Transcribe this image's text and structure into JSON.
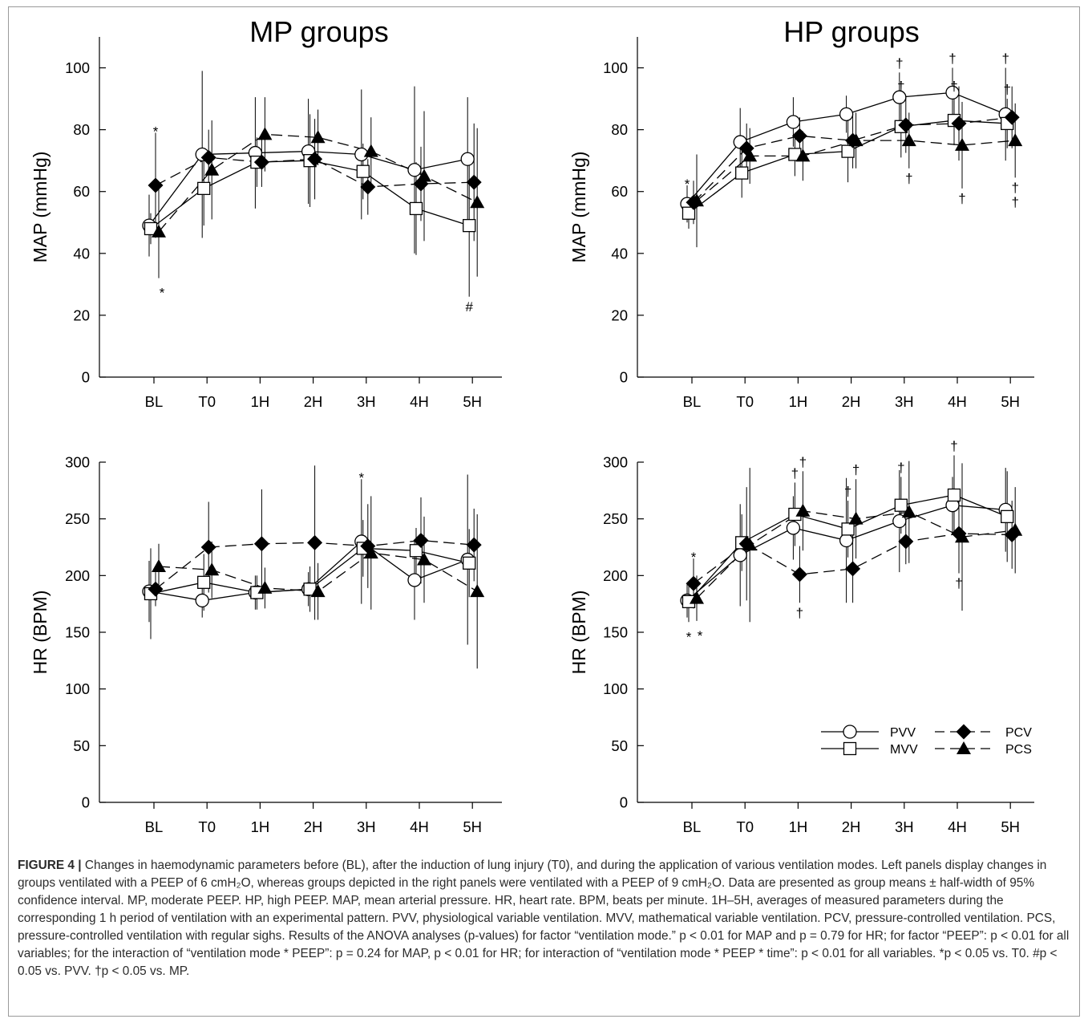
{
  "figure": {
    "colors": {
      "line": "#000000",
      "axis": "#000000",
      "frame": "#9a9a9a",
      "caption": "#2b2b2b"
    },
    "legend": {
      "items": [
        {
          "label": "PVV",
          "marker": "circle-open",
          "dash": "solid"
        },
        {
          "label": "MVV",
          "marker": "square-open",
          "dash": "solid"
        },
        {
          "label": "PCV",
          "marker": "diamond-filled",
          "dash": "dashed"
        },
        {
          "label": "PCS",
          "marker": "triangle-filled",
          "dash": "dashed"
        }
      ]
    },
    "caption": {
      "label": "FIGURE 4 |",
      "text": "Changes in haemodynamic parameters before (BL), after the induction of lung injury (T0), and during the application of various ventilation modes. Left panels display changes in groups ventilated with a PEEP of 6 cmH₂O, whereas groups depicted in the right panels were ventilated with a PEEP of 9 cmH₂O. Data are presented as group means ± half-width of 95% confidence interval. MP, moderate PEEP. HP, high PEEP. MAP, mean arterial pressure. HR, heart rate. BPM, beats per minute. 1H–5H, averages of measured parameters during the corresponding 1 h period of ventilation with an experimental pattern. PVV, physiological variable ventilation. MVV, mathematical variable ventilation. PCV, pressure-controlled ventilation. PCS, pressure-controlled ventilation with regular sighs. Results of the ANOVA analyses (p-values) for factor “ventilation mode.” p < 0.01 for MAP and p = 0.79 for HR; for factor “PEEP”: p < 0.01 for all variables; for the interaction of “ventilation mode * PEEP”: p = 0.24 for MAP, p < 0.01 for HR; for interaction of “ventilation mode * PEEP * time”: p < 0.01 for all variables. *p < 0.05 vs. T0. #p < 0.05 vs. PVV. †p < 0.05 vs. MP."
    }
  },
  "chart_data": [
    {
      "type": "line",
      "title": "MP groups",
      "xlabel": "",
      "ylabel": "MAP (mmHg)",
      "categories": [
        "BL",
        "T0",
        "1H",
        "2H",
        "3H",
        "4H",
        "5H"
      ],
      "ylim": [
        0,
        110
      ],
      "yticks": [
        0,
        20,
        40,
        60,
        80,
        100
      ],
      "series": [
        {
          "name": "PVV",
          "values": [
            49,
            72,
            72.5,
            73,
            72,
            67,
            70.5
          ],
          "err": [
            10,
            27,
            18,
            17,
            21,
            27,
            20
          ]
        },
        {
          "name": "MVV",
          "values": [
            48,
            61,
            69.5,
            70,
            66.5,
            54.5,
            49
          ],
          "err": [
            5,
            12,
            8,
            15,
            9,
            15,
            23
          ]
        },
        {
          "name": "PCV",
          "values": [
            62,
            71,
            69.5,
            70.5,
            61.5,
            62.5,
            63
          ],
          "err": [
            17,
            9,
            8,
            13,
            9,
            12,
            19
          ]
        },
        {
          "name": "PCS",
          "values": [
            47,
            67,
            78.5,
            77.5,
            73,
            65,
            56.5
          ],
          "err": [
            15,
            16,
            12,
            9,
            11,
            21,
            24
          ]
        }
      ],
      "annotations": [
        {
          "text": "*",
          "x": "BL",
          "y": 62,
          "series": "PCV",
          "pos": "above"
        },
        {
          "text": "*",
          "x": "BL",
          "y": 47,
          "series": "PCS",
          "pos": "below"
        },
        {
          "text": "#",
          "x": "5H",
          "y": 49,
          "series": "MVV",
          "pos": "below"
        }
      ]
    },
    {
      "type": "line",
      "title": "HP groups",
      "xlabel": "",
      "ylabel": "MAP (mmHg)",
      "categories": [
        "BL",
        "T0",
        "1H",
        "2H",
        "3H",
        "4H",
        "5H"
      ],
      "ylim": [
        0,
        110
      ],
      "yticks": [
        0,
        20,
        40,
        60,
        80,
        100
      ],
      "series": [
        {
          "name": "PVV",
          "values": [
            56,
            76,
            82.5,
            85,
            90.5,
            92,
            85
          ],
          "err": [
            6,
            11,
            8,
            6,
            8,
            8,
            15
          ]
        },
        {
          "name": "MVV",
          "values": [
            53,
            66,
            72,
            73,
            81,
            83,
            82
          ],
          "err": [
            5,
            8,
            7,
            10,
            10,
            8,
            8
          ]
        },
        {
          "name": "PCV",
          "values": [
            56.5,
            74,
            78,
            76.5,
            81.5,
            82,
            84
          ],
          "err": [
            7,
            8,
            6,
            9,
            9,
            12,
            10
          ]
        },
        {
          "name": "PCS",
          "values": [
            57,
            71.5,
            71.5,
            76.5,
            76.5,
            75,
            76.5
          ],
          "err": [
            15,
            9,
            8,
            9,
            9,
            14,
            12
          ]
        }
      ],
      "annotations": [
        {
          "text": "*",
          "x": "BL",
          "y": 56,
          "series": "PVV",
          "pos": "above"
        },
        {
          "text": "†",
          "x": "3H",
          "y": 90.5,
          "series": "PVV",
          "pos": "above"
        },
        {
          "text": "†",
          "x": "4H",
          "y": 92,
          "series": "PVV",
          "pos": "above"
        },
        {
          "text": "†",
          "x": "5H",
          "y": 85,
          "series": "PVV",
          "pos": "above"
        },
        {
          "text": "†",
          "x": "3H",
          "y": 81,
          "series": "MVV",
          "pos": "above"
        },
        {
          "text": "†",
          "x": "4H",
          "y": 83,
          "series": "MVV",
          "pos": "above"
        },
        {
          "text": "†",
          "x": "5H",
          "y": 82,
          "series": "MVV",
          "pos": "above"
        },
        {
          "text": "†",
          "x": "3H",
          "y": 76.5,
          "series": "PCS",
          "pos": "below"
        },
        {
          "text": "†",
          "x": "4H",
          "y": 75,
          "series": "PCS",
          "pos": "below"
        },
        {
          "text": "†",
          "x": "5H",
          "y": 76.5,
          "series": "PCS",
          "pos": "below"
        },
        {
          "text": "†",
          "x": "5H",
          "y": 76.5,
          "series": "PCS",
          "pos": "below2"
        }
      ]
    },
    {
      "type": "line",
      "title": "",
      "xlabel": "",
      "ylabel": "HR (BPM)",
      "categories": [
        "BL",
        "T0",
        "1H",
        "2H",
        "3H",
        "4H",
        "5H"
      ],
      "ylim": [
        0,
        300
      ],
      "yticks": [
        0,
        50,
        100,
        150,
        200,
        250,
        300
      ],
      "series": [
        {
          "name": "PVV",
          "values": [
            186,
            178,
            185,
            188,
            230,
            196,
            214
          ],
          "err": [
            27,
            15,
            15,
            15,
            55,
            35,
            75
          ]
        },
        {
          "name": "MVV",
          "values": [
            184,
            194,
            185,
            188,
            224,
            222,
            211
          ],
          "err": [
            40,
            25,
            15,
            20,
            25,
            20,
            30
          ]
        },
        {
          "name": "PCV",
          "values": [
            188,
            225,
            228,
            229,
            226,
            231,
            227
          ],
          "err": [
            15,
            40,
            48,
            68,
            37,
            38,
            32
          ]
        },
        {
          "name": "PCS",
          "values": [
            208,
            205,
            189,
            186,
            220,
            214,
            186
          ],
          "err": [
            20,
            25,
            18,
            25,
            50,
            38,
            68
          ]
        }
      ],
      "annotations": [
        {
          "text": "*",
          "x": "3H",
          "y": 230,
          "series": "PVV",
          "pos": "above"
        }
      ]
    },
    {
      "type": "line",
      "title": "",
      "xlabel": "",
      "ylabel": "HR (BPM)",
      "categories": [
        "BL",
        "T0",
        "1H",
        "2H",
        "3H",
        "4H",
        "5H"
      ],
      "ylim": [
        0,
        300
      ],
      "yticks": [
        0,
        50,
        100,
        150,
        200,
        250,
        300
      ],
      "series": [
        {
          "name": "PVV",
          "values": [
            178,
            218,
            242,
            231,
            248,
            262,
            258
          ],
          "err": [
            15,
            45,
            28,
            55,
            45,
            25,
            37
          ]
        },
        {
          "name": "MVV",
          "values": [
            177,
            229,
            254,
            241,
            262,
            271,
            252
          ],
          "err": [
            18,
            25,
            28,
            25,
            25,
            35,
            40
          ]
        },
        {
          "name": "PCV",
          "values": [
            193,
            228,
            201,
            206,
            230,
            237,
            236
          ],
          "err": [
            22,
            50,
            25,
            30,
            20,
            35,
            30
          ]
        },
        {
          "name": "PCS",
          "values": [
            180,
            227,
            257,
            250,
            256,
            234,
            240
          ],
          "err": [
            20,
            68,
            35,
            35,
            45,
            65,
            38
          ]
        }
      ],
      "annotations": [
        {
          "text": "*",
          "x": "BL",
          "y": 193,
          "series": "PCV",
          "pos": "above"
        },
        {
          "text": "*",
          "x": "BL",
          "y": 177,
          "series": "MVV",
          "pos": "below"
        },
        {
          "text": "*",
          "x": "BL",
          "y": 180,
          "series": "PCS",
          "pos": "below"
        },
        {
          "text": "†",
          "x": "1H",
          "y": 254,
          "series": "MVV",
          "pos": "above"
        },
        {
          "text": "†",
          "x": "1H",
          "y": 257,
          "series": "PCS",
          "pos": "above"
        },
        {
          "text": "†",
          "x": "2H",
          "y": 241,
          "series": "MVV",
          "pos": "above"
        },
        {
          "text": "†",
          "x": "2H",
          "y": 250,
          "series": "PCS",
          "pos": "above"
        },
        {
          "text": "†",
          "x": "3H",
          "y": 262,
          "series": "MVV",
          "pos": "above"
        },
        {
          "text": "†",
          "x": "4H",
          "y": 271,
          "series": "MVV",
          "pos": "above"
        },
        {
          "text": "†",
          "x": "1H",
          "y": 201,
          "series": "PCV",
          "pos": "below"
        },
        {
          "text": "†",
          "x": "4H",
          "y": 237,
          "series": "PCV",
          "pos": "below"
        }
      ]
    }
  ]
}
